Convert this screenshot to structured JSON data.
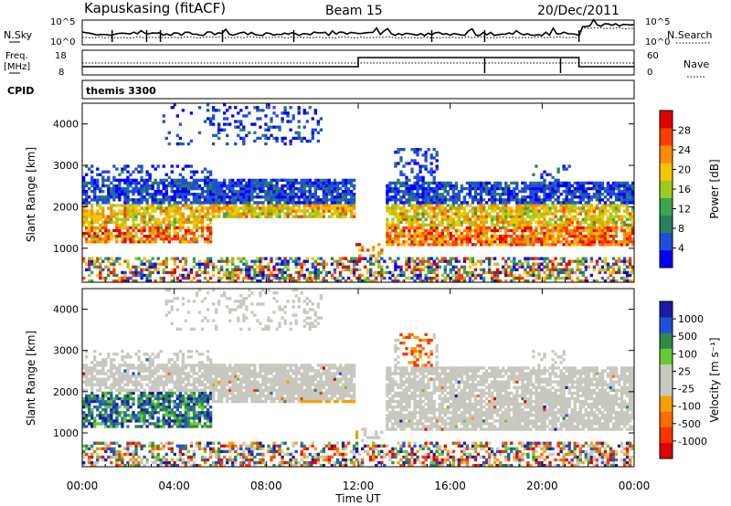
{
  "header": {
    "station": "Kapuskasing (fitACF)",
    "beam": "Beam 15",
    "date": "20/Dec/2011"
  },
  "ancillary": {
    "nsky_label": "N.Sky",
    "nsky_ticks": [
      "10^5",
      "10^0"
    ],
    "nsearch_label": "N.Search",
    "nsearch_ticks": [
      "10^5",
      "10^0"
    ],
    "freq_label_1": "Freq.",
    "freq_label_2": "[MHz]",
    "freq_ticks": [
      "18",
      "8"
    ],
    "nave_label": "Nave",
    "nave_ticks": [
      "60",
      "0"
    ],
    "cpid_label": "CPID",
    "cpid_value": "themis 3300"
  },
  "colors": {
    "power": [
      "#0000ff",
      "#1f4fd8",
      "#2a7f5f",
      "#38a84a",
      "#9ccc1e",
      "#f5c400",
      "#ff8a00",
      "#ff3d00",
      "#e00000"
    ],
    "velocity": [
      "#1a1aa8",
      "#1f4fd8",
      "#2f8a4a",
      "#66cc33",
      "#c8c8c0",
      "#c8c8c0",
      "#f5a000",
      "#ff6a00",
      "#ff3300",
      "#e00000"
    ]
  },
  "chart_data": [
    {
      "type": "heatmap",
      "panel": "power",
      "title": "",
      "xlabel": "Time UT",
      "ylabel": "Slant Range [km]",
      "x_ticks": [
        "00:00",
        "04:00",
        "08:00",
        "12:00",
        "16:00",
        "20:00",
        "00:00"
      ],
      "xlim_hours": [
        0,
        24
      ],
      "y_ticks": [
        1000,
        2000,
        3000,
        4000
      ],
      "ylim_km": [
        180,
        4500
      ],
      "colorbar_label": "Power [dB]",
      "colorbar_ticks": [
        "28",
        "24",
        "20",
        "16",
        "12",
        "8",
        "4"
      ],
      "colorbar_range": [
        0,
        30
      ]
    },
    {
      "type": "heatmap",
      "panel": "velocity",
      "title": "",
      "xlabel": "Time UT",
      "ylabel": "Slant Range [km]",
      "x_ticks": [
        "00:00",
        "04:00",
        "08:00",
        "12:00",
        "16:00",
        "20:00",
        "00:00"
      ],
      "xlim_hours": [
        0,
        24
      ],
      "y_ticks": [
        1000,
        2000,
        3000,
        4000
      ],
      "ylim_km": [
        180,
        4500
      ],
      "colorbar_label": "Velocity [m s⁻¹]",
      "colorbar_ticks": [
        "1000",
        "500",
        "100",
        "25",
        "-25",
        "-100",
        "-500",
        "-1000"
      ],
      "colorbar_range": [
        -1000,
        1000
      ]
    }
  ]
}
